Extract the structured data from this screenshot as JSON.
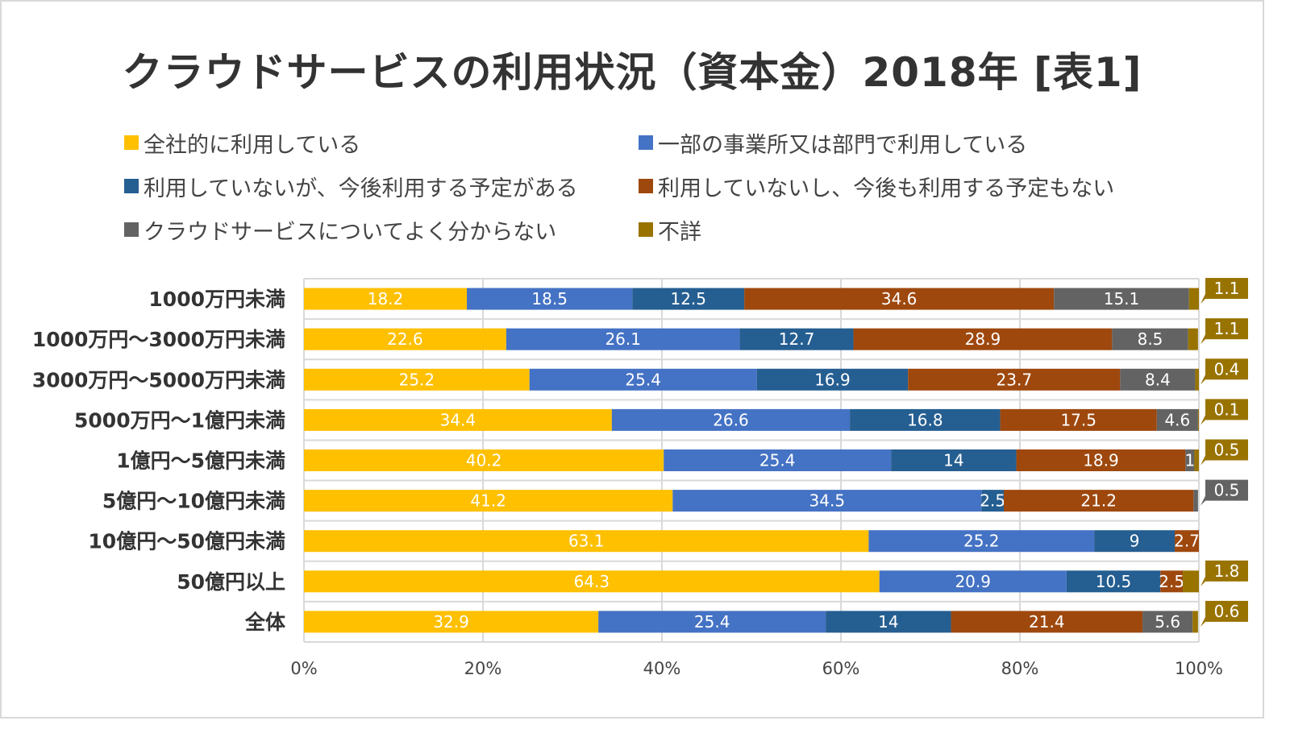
{
  "chart_data": {
    "type": "bar",
    "orientation": "horizontal",
    "stacked": "percent",
    "title": "クラウドサービスの利用状況（資本金）2018年 [表1]",
    "categories": [
      "1000万円未満",
      "1000万円～3000万円未満",
      "3000万円～5000万円未満",
      "5000万円～1億円未満",
      "1億円～5億円未満",
      "5億円～10億円未満",
      "10億円～50億円未満",
      "50億円以上",
      "全体"
    ],
    "series": [
      {
        "name": "全社的に利用している",
        "color": "#FFC000",
        "values": [
          18.2,
          22.6,
          25.2,
          34.4,
          40.2,
          41.2,
          63.1,
          64.3,
          32.9
        ]
      },
      {
        "name": "一部の事業所又は部門で利用している",
        "color": "#4472C4",
        "values": [
          18.5,
          26.1,
          25.4,
          26.6,
          25.4,
          34.5,
          25.2,
          20.9,
          25.4
        ]
      },
      {
        "name": "利用していないが、今後利用する予定がある",
        "color": "#255E91",
        "values": [
          12.5,
          12.7,
          16.9,
          16.8,
          14,
          2.5,
          9,
          10.5,
          14
        ]
      },
      {
        "name": "利用していないし、今後も利用する予定もない",
        "color": "#9E480E",
        "values": [
          34.6,
          28.9,
          23.7,
          17.5,
          18.9,
          21.2,
          2.7,
          2.5,
          21.4
        ]
      },
      {
        "name": "クラウドサービスについてよく分からない",
        "color": "#636363",
        "values": [
          15.1,
          8.5,
          8.4,
          4.6,
          1,
          0.5,
          0,
          0,
          5.6
        ]
      },
      {
        "name": "不詳",
        "color": "#997300",
        "values": [
          1.1,
          1.1,
          0.4,
          0.1,
          0.5,
          0,
          0,
          1.8,
          0.6
        ]
      }
    ],
    "callouts": [
      {
        "category": 0,
        "series": 5,
        "text": "1.1"
      },
      {
        "category": 1,
        "series": 5,
        "text": "1.1"
      },
      {
        "category": 2,
        "series": 5,
        "text": "0.4"
      },
      {
        "category": 3,
        "series": 5,
        "text": "0.1"
      },
      {
        "category": 4,
        "series": 5,
        "text": "0.5"
      },
      {
        "category": 5,
        "series": 4,
        "text": "0.5"
      },
      {
        "category": 7,
        "series": 5,
        "text": "1.8"
      },
      {
        "category": 8,
        "series": 5,
        "text": "0.6"
      }
    ],
    "xaxis": {
      "min": 0,
      "max": 100,
      "ticks": [
        "0%",
        "20%",
        "40%",
        "60%",
        "80%",
        "100%"
      ]
    },
    "grid": true,
    "legend_position": "top"
  }
}
